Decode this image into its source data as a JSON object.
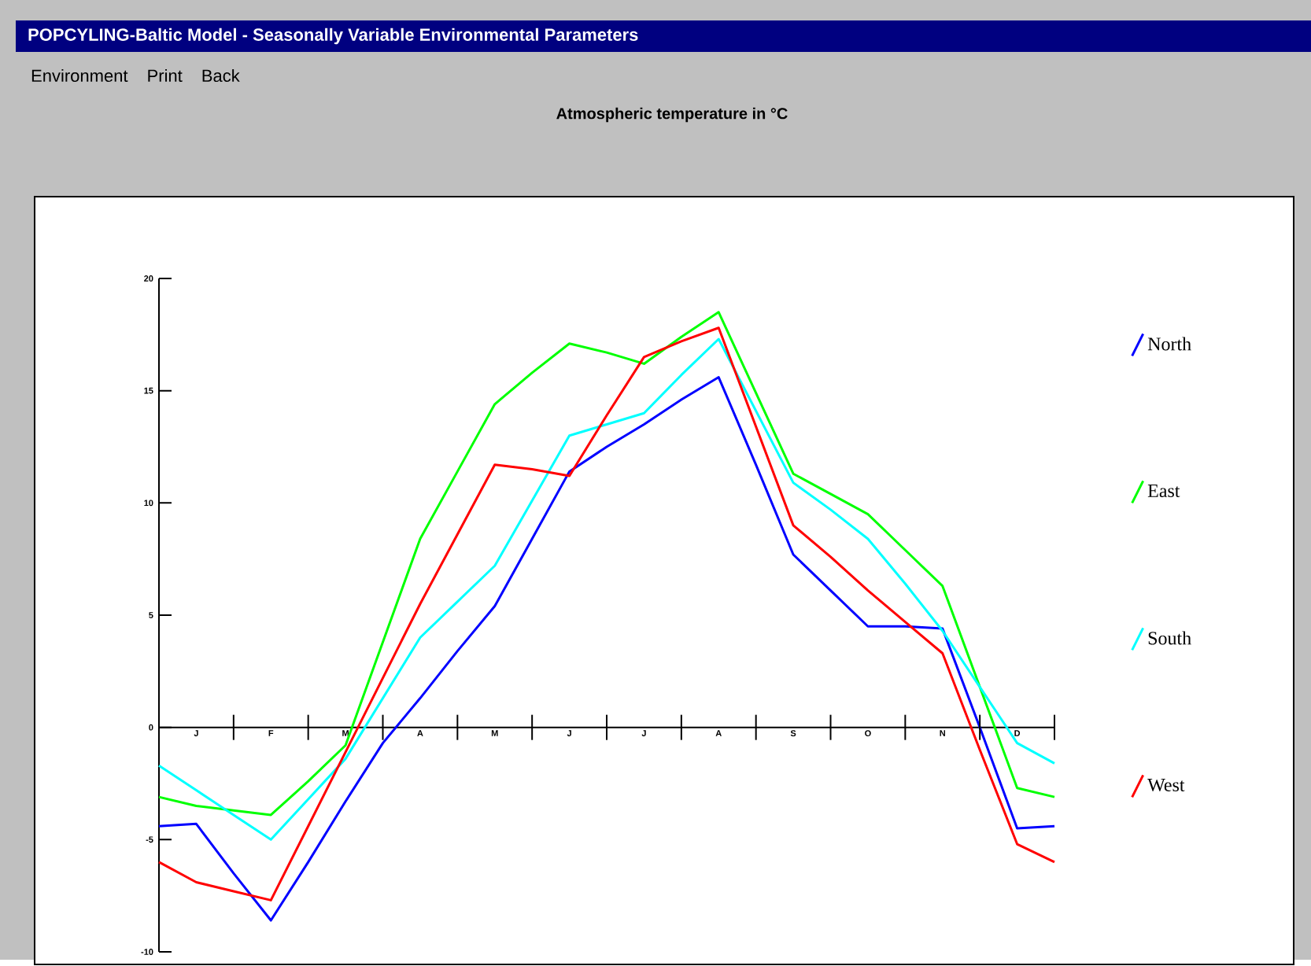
{
  "chart_data": {
    "type": "line",
    "title": "POPCYLING-Baltic Model - Seasonally Variable Environmental Parameters",
    "subtitle": "Atmospheric temperature in °C",
    "annotations": [
      "Environment",
      "Print",
      "Back"
    ],
    "categories": [
      null,
      "J",
      null,
      "F",
      null,
      "M",
      null,
      "A",
      null,
      "M",
      null,
      "J",
      null,
      "J",
      null,
      "A",
      null,
      "S",
      null,
      "O",
      null,
      "N",
      null,
      "D",
      null
    ],
    "ylim": [
      -10,
      20
    ],
    "yticks": [
      -10,
      -5,
      0,
      5,
      10,
      15,
      20
    ],
    "grid": false,
    "legend": "right",
    "marker": "none",
    "line_style": "solid",
    "series": [
      {
        "name": "North",
        "color": "#0000ff",
        "values": [
          -4.4,
          -4.3,
          -6.5,
          -8.6,
          -6.0,
          -3.3,
          -0.7,
          1.3,
          3.4,
          5.4,
          8.4,
          11.4,
          12.5,
          13.5,
          14.6,
          15.6,
          11.7,
          7.7,
          6.1,
          4.5,
          4.5,
          4.4,
          0.0,
          -4.5,
          -4.4
        ]
      },
      {
        "name": "East",
        "color": "#00ff00",
        "values": [
          -3.1,
          -3.5,
          -3.7,
          -3.9,
          -2.4,
          -0.8,
          3.8,
          8.4,
          11.4,
          14.4,
          15.8,
          17.1,
          16.7,
          16.2,
          17.4,
          18.5,
          14.9,
          11.3,
          10.4,
          9.5,
          7.9,
          6.3,
          1.8,
          -2.7,
          -3.1
        ]
      },
      {
        "name": "South",
        "color": "#00ffff",
        "values": [
          -1.7,
          -2.8,
          -3.9,
          -5.0,
          -3.2,
          -1.4,
          1.3,
          4.0,
          5.6,
          7.2,
          10.1,
          13.0,
          13.5,
          14.0,
          15.7,
          17.3,
          14.1,
          10.9,
          9.7,
          8.4,
          6.4,
          4.3,
          1.8,
          -0.7,
          -1.6
        ]
      },
      {
        "name": "West",
        "color": "#ff0000",
        "values": [
          -6.0,
          -6.9,
          -7.3,
          -7.7,
          -4.4,
          -1.1,
          2.2,
          5.5,
          8.6,
          11.7,
          11.5,
          11.2,
          13.9,
          16.5,
          17.2,
          17.8,
          13.4,
          9.0,
          7.6,
          6.1,
          4.7,
          3.3,
          -1.0,
          -5.2,
          -6.0
        ]
      }
    ]
  }
}
